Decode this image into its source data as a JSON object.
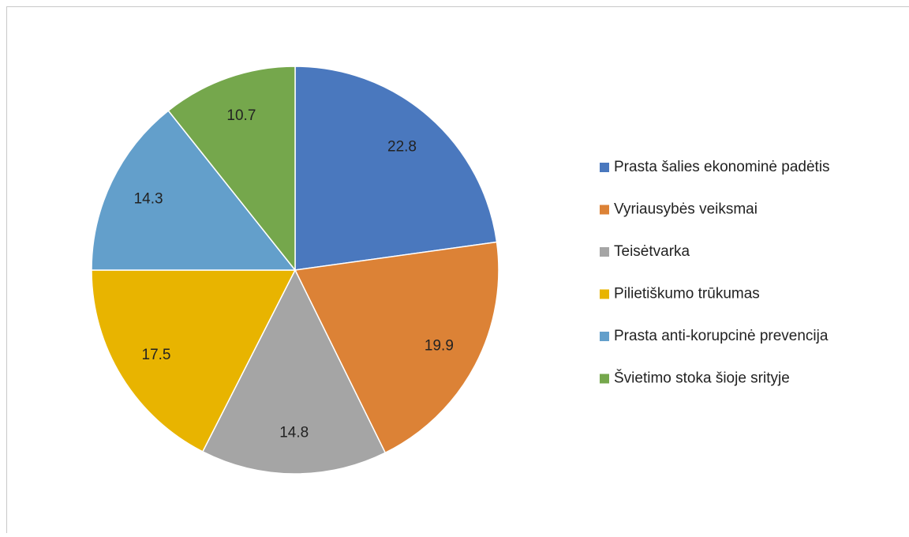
{
  "chart_data": {
    "type": "pie",
    "categories": [
      "Prasta šalies ekonominė padėtis",
      "Vyriausybės veiksmai",
      "Teisėtvarka",
      "Pilietiškumo trūkumas",
      "Prasta anti-korupcinė prevencija",
      "Švietimo stoka šioje srityje"
    ],
    "values": [
      22.8,
      19.9,
      14.8,
      17.5,
      14.3,
      10.7
    ],
    "colors": [
      "#4a78be",
      "#dc8236",
      "#a5a5a5",
      "#e8b400",
      "#639fcb",
      "#75a74c"
    ],
    "legend": "right"
  }
}
